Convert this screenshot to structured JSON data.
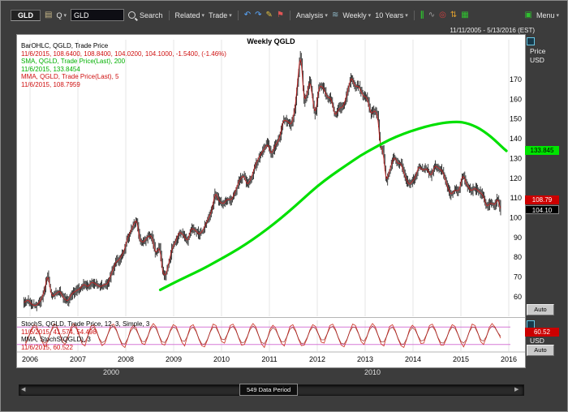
{
  "toolbar": {
    "ticker": "GLD",
    "q": "Q",
    "symbol_value": "GLD",
    "search": "Search",
    "related": "Related",
    "trade": "Trade",
    "analysis": "Analysis",
    "period": "Weekly",
    "range": "10 Years",
    "menu": "Menu"
  },
  "icons": {
    "dropdown": "▾",
    "doc": "▤",
    "undo": "↶",
    "redo": "↷",
    "pencil": "✎",
    "flag": "⚑",
    "wave": "≋",
    "candle": "∥",
    "trend": "∿",
    "target": "◎",
    "updown": "⇅",
    "grid": "▦",
    "screen": "▣",
    "scroll_left": "◀",
    "scroll_right": "▶"
  },
  "header": {
    "title": "Weekly QGLD",
    "date_range": "11/11/2005 - 5/13/2016 (EST)"
  },
  "legend_main": {
    "l1": "BarOHLC, QGLD, Trade Price",
    "l2": "11/6/2015, 108.6400, 108.8400, 104.0200, 104.1000, -1.5400, (-1.46%)",
    "l3": "SMA, QGLD, Trade Price(Last),  200",
    "l4": "11/6/2015, 133.8454",
    "l5": "MMA, QGLD, Trade Price(Last),  5",
    "l6": "11/6/2015, 108.7959"
  },
  "legend_stoch": {
    "l1": "StochS, QGLD, Trade Price, 12, 3, Simple, 3",
    "l2": "11/6/2015, 41.574, 54.498",
    "l3": "MMA, StochS(QGLD), 3",
    "l4": "11/6/2015, 60.522"
  },
  "right_axis": {
    "price": "Price",
    "usd": "USD",
    "sma_badge": "133.845",
    "mma_badge": "108.79",
    "last_badge": "104.10",
    "auto": "Auto",
    "stoch_badge": "60.52",
    "stoch_usd": "USD",
    "stoch_auto": "Auto"
  },
  "bottom": {
    "decade1": "2000",
    "decade2": "2010",
    "scroll_label": "549 Data Period"
  },
  "chart_data": {
    "type": "ohlc",
    "title": "Weekly QGLD",
    "symbol": "QGLD",
    "interval": "Weekly",
    "date_range": [
      "11/11/2005",
      "5/13/2016"
    ],
    "data_periods": 549,
    "x_ticks": [
      2006,
      2007,
      2008,
      2009,
      2010,
      2011,
      2012,
      2013,
      2014,
      2015,
      2016
    ],
    "price_axis": {
      "label": "Price USD",
      "ticks": [
        170,
        160,
        150,
        140,
        130,
        120,
        110,
        100,
        90,
        80,
        70,
        60
      ]
    },
    "last_ohlc": {
      "date": "11/6/2015",
      "open": 108.64,
      "high": 108.84,
      "low": 104.02,
      "close": 104.1,
      "change": -1.54,
      "change_pct": -1.46
    },
    "sma200_last": 133.8454,
    "mma5_last": 108.7959,
    "last_close": 104.1,
    "price_monthly": [
      [
        2005.87,
        57
      ],
      [
        2005.96,
        58.5
      ],
      [
        2006.04,
        56
      ],
      [
        2006.12,
        55.5
      ],
      [
        2006.21,
        57.5
      ],
      [
        2006.29,
        62
      ],
      [
        2006.37,
        71.5
      ],
      [
        2006.42,
        64
      ],
      [
        2006.46,
        60
      ],
      [
        2006.54,
        61.5
      ],
      [
        2006.62,
        63
      ],
      [
        2006.71,
        59
      ],
      [
        2006.79,
        57.8
      ],
      [
        2006.87,
        61.5
      ],
      [
        2006.96,
        63
      ],
      [
        2007.04,
        64
      ],
      [
        2007.12,
        66.5
      ],
      [
        2007.21,
        65
      ],
      [
        2007.29,
        67.5
      ],
      [
        2007.37,
        66.5
      ],
      [
        2007.46,
        65
      ],
      [
        2007.54,
        66
      ],
      [
        2007.62,
        66.5
      ],
      [
        2007.71,
        72.5
      ],
      [
        2007.79,
        77.5
      ],
      [
        2007.87,
        79
      ],
      [
        2007.96,
        83
      ],
      [
        2008.04,
        90
      ],
      [
        2008.12,
        94
      ],
      [
        2008.18,
        97.5
      ],
      [
        2008.23,
        99
      ],
      [
        2008.29,
        88.5
      ],
      [
        2008.37,
        87.5
      ],
      [
        2008.46,
        90.5
      ],
      [
        2008.54,
        91
      ],
      [
        2008.62,
        82
      ],
      [
        2008.71,
        85
      ],
      [
        2008.77,
        72
      ],
      [
        2008.83,
        70.5
      ],
      [
        2008.89,
        76
      ],
      [
        2008.96,
        84
      ],
      [
        2009.04,
        88
      ],
      [
        2009.12,
        93
      ],
      [
        2009.21,
        91
      ],
      [
        2009.29,
        88
      ],
      [
        2009.37,
        95
      ],
      [
        2009.46,
        93.5
      ],
      [
        2009.54,
        91.5
      ],
      [
        2009.62,
        94
      ],
      [
        2009.71,
        99
      ],
      [
        2009.79,
        103
      ],
      [
        2009.87,
        113
      ],
      [
        2009.96,
        108
      ],
      [
        2010.04,
        107
      ],
      [
        2010.12,
        109.5
      ],
      [
        2010.21,
        109
      ],
      [
        2010.29,
        113.5
      ],
      [
        2010.37,
        119
      ],
      [
        2010.46,
        121.5
      ],
      [
        2010.54,
        116.5
      ],
      [
        2010.62,
        120
      ],
      [
        2010.71,
        127
      ],
      [
        2010.79,
        131
      ],
      [
        2010.87,
        134
      ],
      [
        2010.96,
        137.5
      ],
      [
        2011.04,
        132
      ],
      [
        2011.12,
        136.5
      ],
      [
        2011.21,
        140
      ],
      [
        2011.29,
        149.5
      ],
      [
        2011.37,
        149
      ],
      [
        2011.46,
        147
      ],
      [
        2011.54,
        156
      ],
      [
        2011.6,
        172
      ],
      [
        2011.64,
        183
      ],
      [
        2011.68,
        176
      ],
      [
        2011.72,
        159
      ],
      [
        2011.79,
        163
      ],
      [
        2011.85,
        170
      ],
      [
        2011.92,
        157
      ],
      [
        2011.96,
        152
      ],
      [
        2012.04,
        167
      ],
      [
        2012.12,
        166
      ],
      [
        2012.21,
        161
      ],
      [
        2012.29,
        160.5
      ],
      [
        2012.37,
        151.5
      ],
      [
        2012.46,
        155.5
      ],
      [
        2012.54,
        156
      ],
      [
        2012.62,
        162.5
      ],
      [
        2012.71,
        171.5
      ],
      [
        2012.79,
        166.5
      ],
      [
        2012.87,
        166.5
      ],
      [
        2012.96,
        161.5
      ],
      [
        2013.04,
        161
      ],
      [
        2013.12,
        152.5
      ],
      [
        2013.21,
        154.5
      ],
      [
        2013.27,
        151
      ],
      [
        2013.31,
        136
      ],
      [
        2013.37,
        134.5
      ],
      [
        2013.44,
        118
      ],
      [
        2013.52,
        124.5
      ],
      [
        2013.6,
        131
      ],
      [
        2013.68,
        127.5
      ],
      [
        2013.75,
        127.5
      ],
      [
        2013.83,
        121
      ],
      [
        2013.92,
        116.5
      ],
      [
        2014.04,
        120
      ],
      [
        2014.12,
        126
      ],
      [
        2014.21,
        124
      ],
      [
        2014.29,
        125
      ],
      [
        2014.37,
        121
      ],
      [
        2014.46,
        126.5
      ],
      [
        2014.54,
        125
      ],
      [
        2014.62,
        123.5
      ],
      [
        2014.71,
        116.5
      ],
      [
        2014.79,
        111.5
      ],
      [
        2014.87,
        114
      ],
      [
        2014.96,
        113.5
      ],
      [
        2015.04,
        122
      ],
      [
        2015.12,
        117
      ],
      [
        2015.21,
        113.5
      ],
      [
        2015.29,
        115
      ],
      [
        2015.37,
        113.5
      ],
      [
        2015.46,
        111.5
      ],
      [
        2015.54,
        105.5
      ],
      [
        2015.62,
        107.5
      ],
      [
        2015.71,
        106.5
      ],
      [
        2015.77,
        110
      ],
      [
        2015.83,
        104.1
      ]
    ],
    "sma200": [
      [
        2008.72,
        63.5
      ],
      [
        2009.0,
        67
      ],
      [
        2009.3,
        70.5
      ],
      [
        2009.6,
        74
      ],
      [
        2009.9,
        78
      ],
      [
        2010.2,
        82
      ],
      [
        2010.5,
        86.5
      ],
      [
        2010.8,
        91.5
      ],
      [
        2011.1,
        97
      ],
      [
        2011.4,
        103
      ],
      [
        2011.7,
        109.5
      ],
      [
        2012.0,
        116
      ],
      [
        2012.3,
        121.5
      ],
      [
        2012.6,
        126.5
      ],
      [
        2012.9,
        131.5
      ],
      [
        2013.2,
        135.5
      ],
      [
        2013.5,
        139.5
      ],
      [
        2013.8,
        142.5
      ],
      [
        2014.1,
        145
      ],
      [
        2014.4,
        147
      ],
      [
        2014.7,
        148.3
      ],
      [
        2014.95,
        148.6
      ],
      [
        2015.1,
        148
      ],
      [
        2015.25,
        146.8
      ],
      [
        2015.4,
        145
      ],
      [
        2015.55,
        142.5
      ],
      [
        2015.7,
        139.5
      ],
      [
        2015.85,
        136
      ],
      [
        2015.95,
        133.85
      ]
    ],
    "stoch": {
      "params": "12, 3, Simple, 3",
      "last": 41.574,
      "signal_last": 54.498,
      "mma_last": 60.522,
      "overbought": 80,
      "oversold": 20,
      "x_start": 2005.9,
      "x_end": 2015.83,
      "values": [
        18,
        40,
        70,
        88,
        82,
        55,
        28,
        12,
        35,
        65,
        90,
        85,
        60,
        30,
        20,
        45,
        78,
        92,
        80,
        50,
        22,
        15,
        50,
        82,
        88,
        68,
        38,
        16,
        25,
        55,
        85,
        90,
        72,
        42,
        18,
        10,
        38,
        72,
        86,
        76,
        48,
        24,
        20,
        45,
        78,
        92,
        80,
        50,
        22,
        18,
        40,
        70,
        88,
        82,
        55,
        28,
        15,
        50,
        82,
        88,
        68,
        38,
        16,
        12,
        35,
        65,
        90,
        85,
        60,
        30,
        25,
        55,
        85,
        90,
        72,
        42,
        18,
        20,
        45,
        78,
        92,
        80,
        50,
        22,
        10,
        38,
        72,
        86,
        76,
        48,
        24,
        15,
        50,
        82,
        88,
        68,
        38,
        16,
        18,
        40,
        70,
        88,
        82,
        55,
        28,
        25,
        55,
        85,
        90,
        72,
        42,
        18,
        12,
        35,
        65,
        90,
        85,
        60,
        30,
        20,
        45,
        78,
        92,
        80,
        50,
        22,
        15,
        50,
        82,
        88,
        68,
        38,
        16,
        10,
        38,
        72,
        86,
        76,
        48,
        24,
        25,
        55,
        85,
        90,
        72,
        42,
        18,
        18,
        40,
        70,
        88,
        82,
        55,
        28,
        12,
        35,
        65,
        90,
        85,
        60,
        30,
        20,
        45,
        78,
        92,
        80,
        61,
        42
      ]
    }
  }
}
